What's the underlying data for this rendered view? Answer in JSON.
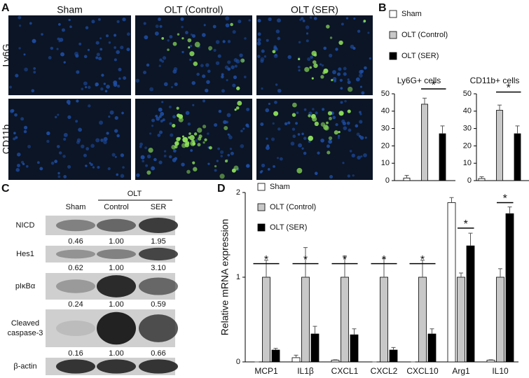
{
  "panel_labels": [
    "A",
    "B",
    "C",
    "D"
  ],
  "panel_a": {
    "columns": [
      "Sham",
      "OLT (Control)",
      "OLT (SER)"
    ],
    "rows": [
      "Ly6G",
      "CD11b"
    ]
  },
  "panel_c": {
    "group": "OLT",
    "columns": [
      "Sham",
      "Control",
      "SER"
    ],
    "rows": [
      {
        "label": [
          "NICD"
        ],
        "values": [
          "0.46",
          "1.00",
          "1.95"
        ]
      },
      {
        "label": [
          "Hes1"
        ],
        "values": [
          "0.62",
          "1.00",
          "3.10"
        ]
      },
      {
        "label": [
          "pIκBα"
        ],
        "values": [
          "0.24",
          "1.00",
          "0.59"
        ]
      },
      {
        "label": [
          "Cleaved",
          "caspase-3"
        ],
        "values": [
          "0.16",
          "1.00",
          "0.66"
        ]
      },
      {
        "label": [
          "β-actin"
        ]
      }
    ]
  },
  "chart_data": [
    {
      "type": "bar",
      "title": "Ly6G+ cells",
      "ylim": [
        0,
        50
      ],
      "yticks": [
        0,
        10,
        20,
        30,
        40,
        50
      ],
      "series": [
        {
          "name": "Sham",
          "color": "#ffffff",
          "values": [
            1.5
          ],
          "errors": [
            1.5
          ]
        },
        {
          "name": "OLT (Control)",
          "color": "#c8c8c8",
          "values": [
            44
          ],
          "errors": [
            3.5
          ]
        },
        {
          "name": "OLT (SER)",
          "color": "#000000",
          "values": [
            27
          ],
          "errors": [
            4.5
          ]
        }
      ],
      "annotations": [
        {
          "text": "*",
          "y": 52.8,
          "span": [
            1,
            2
          ]
        }
      ]
    },
    {
      "type": "bar",
      "title": "CD11b+ cells",
      "ylim": [
        0,
        50
      ],
      "yticks": [
        0,
        10,
        20,
        30,
        40,
        50
      ],
      "series": [
        {
          "color": "#ffffff",
          "values": [
            1.2
          ],
          "errors": [
            1
          ]
        },
        {
          "color": "#c8c8c8",
          "values": [
            40.5
          ],
          "errors": [
            3
          ]
        },
        {
          "color": "#000000",
          "values": [
            27
          ],
          "errors": [
            4.5
          ]
        }
      ],
      "annotations": [
        {
          "text": "*",
          "y": 51,
          "span": [
            1,
            2
          ]
        }
      ]
    },
    {
      "type": "bar",
      "y_label": "Relative mRNA expression",
      "ylim": [
        0,
        2
      ],
      "yticks": [
        0,
        1,
        2
      ],
      "categories": [
        "MCP1",
        "IL1β",
        "CXCL1",
        "CXCL2",
        "CXCL10",
        "Arg1",
        "IL10"
      ],
      "series": [
        {
          "name": "Sham",
          "color": "#ffffff",
          "values": [
            0,
            0.05,
            0.02,
            0,
            0,
            1.88,
            0.02
          ],
          "errors": [
            0,
            0.03,
            0.005,
            0,
            0,
            0.06,
            0.005
          ]
        },
        {
          "name": "OLT (Control)",
          "color": "#c8c8c8",
          "values": [
            1,
            1,
            1,
            1,
            1,
            1,
            1
          ],
          "errors": [
            0.2,
            0.35,
            0.25,
            0.22,
            0.2,
            0.05,
            0.1
          ]
        },
        {
          "name": "OLT (SER)",
          "color": "#000000",
          "values": [
            0.14,
            0.33,
            0.32,
            0.14,
            0.33,
            1.37,
            1.75
          ],
          "errors": [
            0.02,
            0.09,
            0.07,
            0.03,
            0.06,
            0.15,
            0.08
          ]
        }
      ],
      "annotations": [
        {
          "text": "*",
          "category": 0,
          "y": 1.16,
          "span": [
            0,
            2
          ]
        },
        {
          "text": "*",
          "category": 1,
          "y": 1.16,
          "span": [
            0,
            2
          ]
        },
        {
          "text": "*",
          "category": 2,
          "y": 1.16,
          "span": [
            0,
            2
          ]
        },
        {
          "text": "*",
          "category": 3,
          "y": 1.16,
          "span": [
            0,
            2
          ]
        },
        {
          "text": "*",
          "category": 4,
          "y": 1.16,
          "span": [
            0,
            2
          ]
        },
        {
          "text": "*",
          "category": 5,
          "y": 1.58,
          "span": [
            1,
            2
          ]
        },
        {
          "text": "*",
          "category": 6,
          "y": 1.88,
          "span": [
            1,
            2
          ]
        }
      ]
    }
  ]
}
